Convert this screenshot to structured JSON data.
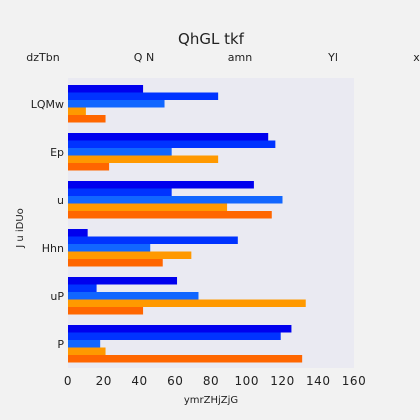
{
  "chart_data": {
    "type": "bar",
    "orientation": "horizontal",
    "title": "QhGL tkf",
    "xlabel": "ymrZHjZjG",
    "ylabel": "J u iDUo",
    "categories": [
      "LQMw",
      "Ep",
      "u",
      "Hhn",
      "uP",
      "P"
    ],
    "series": [
      {
        "name": "dzTbn",
        "color": "#0000ee",
        "values": [
          42,
          112,
          104,
          11,
          61,
          125
        ]
      },
      {
        "name": "Q N",
        "color": "#0033ff",
        "values": [
          84,
          116,
          58,
          95,
          16,
          119
        ]
      },
      {
        "name": "amn",
        "color": "#1166ff",
        "values": [
          54,
          58,
          120,
          46,
          73,
          18
        ]
      },
      {
        "name": "Yl",
        "color": "#ff9900",
        "values": [
          10,
          84,
          89,
          69,
          133,
          21
        ]
      },
      {
        "name": "xl",
        "color": "#ff6600",
        "values": [
          21,
          23,
          114,
          53,
          42,
          131
        ]
      }
    ],
    "xlim": [
      0,
      160
    ],
    "xticks": [
      0,
      20,
      40,
      60,
      80,
      100,
      120,
      140,
      160
    ],
    "grid": false,
    "legend_position": "top"
  }
}
